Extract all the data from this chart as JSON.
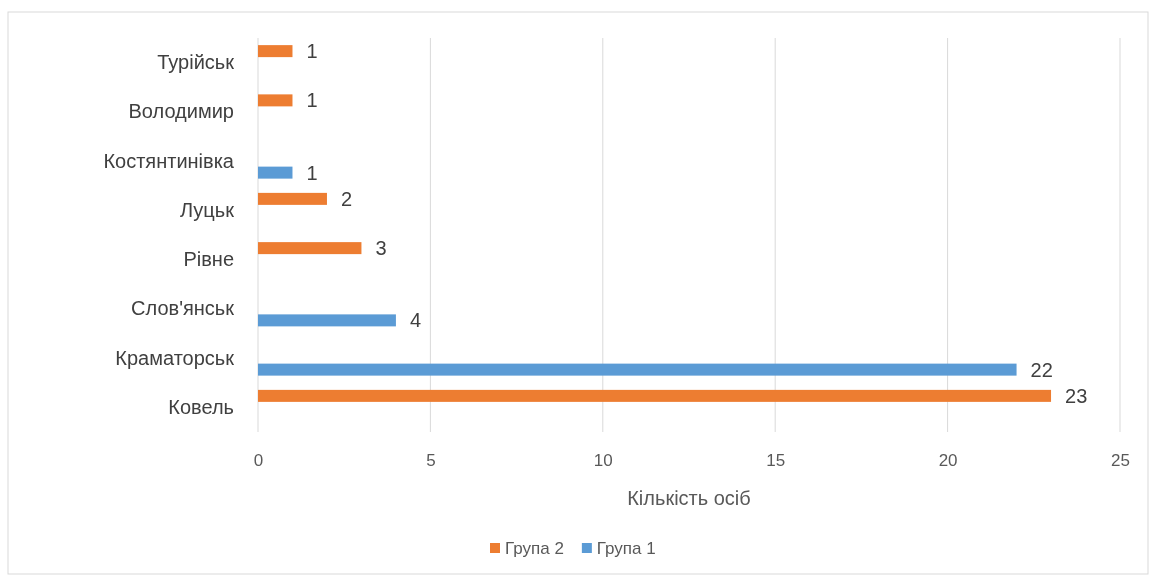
{
  "chart_data": {
    "type": "bar",
    "orientation": "horizontal",
    "xlabel": "Кількість осіб",
    "categories": [
      "Турійськ",
      "Володимир",
      "Костянтинівка",
      "Луцьк",
      "Рівне",
      "Слов'янськ",
      "Краматорськ",
      "Ковель"
    ],
    "series": [
      {
        "name": "Група 2",
        "color": "#ed7d31",
        "values": [
          1,
          1,
          null,
          2,
          3,
          null,
          null,
          23
        ]
      },
      {
        "name": "Група 1",
        "color": "#5b9bd5",
        "values": [
          null,
          null,
          1,
          null,
          null,
          4,
          22,
          null
        ]
      }
    ],
    "xlim": [
      0,
      25
    ],
    "xticks": [
      0,
      5,
      10,
      15,
      20,
      25
    ],
    "grid": "x",
    "legend": "bottom",
    "data_labels": true
  }
}
